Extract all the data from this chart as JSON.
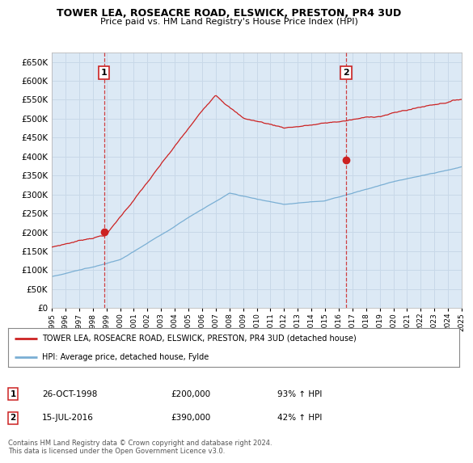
{
  "title": "TOWER LEA, ROSEACRE ROAD, ELSWICK, PRESTON, PR4 3UD",
  "subtitle": "Price paid vs. HM Land Registry's House Price Index (HPI)",
  "ylim": [
    0,
    675000
  ],
  "yticks": [
    0,
    50000,
    100000,
    150000,
    200000,
    250000,
    300000,
    350000,
    400000,
    450000,
    500000,
    550000,
    600000,
    650000
  ],
  "sale1_date": 1998.82,
  "sale1_price": 200000,
  "sale1_label": "1",
  "sale2_date": 2016.54,
  "sale2_price": 390000,
  "sale2_label": "2",
  "red_line_color": "#cc2222",
  "blue_line_color": "#7aafd4",
  "dashed_line_color": "#cc2222",
  "grid_color": "#c8d8e8",
  "plot_bg_color": "#dce9f5",
  "background_color": "#ffffff",
  "legend_label_red": "TOWER LEA, ROSEACRE ROAD, ELSWICK, PRESTON, PR4 3UD (detached house)",
  "legend_label_blue": "HPI: Average price, detached house, Fylde",
  "footer": "Contains HM Land Registry data © Crown copyright and database right 2024.\nThis data is licensed under the Open Government Licence v3.0."
}
